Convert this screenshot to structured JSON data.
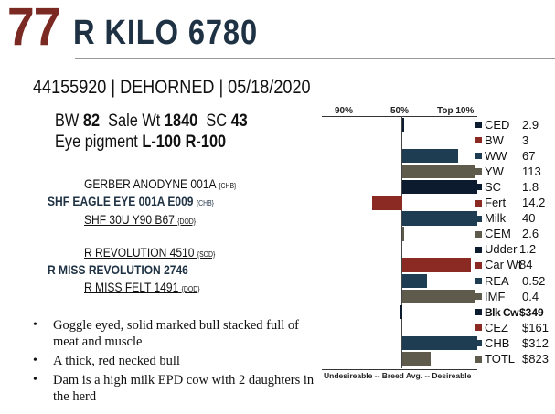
{
  "header": {
    "lot_number": "77",
    "animal_name": "R KILO 6780"
  },
  "id_line": "44155920 | DEHORNED | 05/18/2020",
  "stats": {
    "bw_label": "BW",
    "bw_value": "82",
    "salewt_label": "Sale Wt",
    "salewt_value": "1840",
    "sc_label": "SC",
    "sc_value": "43",
    "eye_label": "Eye pigment",
    "eye_left": "L-100",
    "eye_right": "R-100"
  },
  "pedigree": {
    "sire_sire": {
      "name": "GERBER ANODYNE 001A",
      "reg": "{CHB}"
    },
    "sire": {
      "name": "SHF EAGLE EYE 001A E009",
      "reg": "{CHB}"
    },
    "sire_dam": {
      "name": "SHF 30U Y90 B67",
      "reg": "{DOD}"
    },
    "dam_sire": {
      "name": "R REVOLUTION 4510",
      "reg": "{SOD}"
    },
    "dam": {
      "name": "R MISS REVOLUTION 2746",
      "reg": ""
    },
    "dam_dam": {
      "name": "R MISS FELT 1491",
      "reg": "{DOD}"
    }
  },
  "bullets": [
    "Goggle eyed, solid marked bull stacked full of meat and muscle",
    "A thick, red necked bull",
    "Dam is a high milk EPD cow with 2 daughters in the herd"
  ],
  "epd_chart": {
    "percentile_labels": [
      "90%",
      "50%",
      "Top 10%"
    ],
    "footer": "Undesireable -- Breed Avg. -- Desireable",
    "traits": [
      {
        "label": "CED",
        "value": "2.9",
        "color": "#0d1b2e",
        "bar": 0.03,
        "bold": false
      },
      {
        "label": "BW",
        "value": "3",
        "color": "#8a2a22",
        "bar": 0.0,
        "bold": false
      },
      {
        "label": "WW",
        "value": "67",
        "color": "#1f3d52",
        "bar": 0.74,
        "bold": false
      },
      {
        "label": "YW",
        "value": "113",
        "color": "#5e5a4c",
        "bar": 0.98,
        "bold": false
      },
      {
        "label": "SC",
        "value": "1.8",
        "color": "#0d1b2e",
        "bar": 1.0,
        "bold": false
      },
      {
        "label": "Fert",
        "value": "14.2",
        "color": "#8a2a22",
        "bar": -0.38,
        "bold": false
      },
      {
        "label": "Milk",
        "value": "40",
        "color": "#1f3d52",
        "bar": 1.0,
        "bold": false
      },
      {
        "label": "CEM",
        "value": "2.6",
        "color": "#5e5a4c",
        "bar": 0.03,
        "bold": false
      },
      {
        "label": "Udder",
        "value": "1.2",
        "color": "#0d1b2e",
        "bar": 0.0,
        "bold": false
      },
      {
        "label": "Car Wt",
        "value": "84",
        "color": "#8a2a22",
        "bar": 0.92,
        "bold": false
      },
      {
        "label": "REA",
        "value": "0.52",
        "color": "#1f3d52",
        "bar": 0.33,
        "bold": false
      },
      {
        "label": "IMF",
        "value": "0.4",
        "color": "#5e5a4c",
        "bar": 0.98,
        "bold": false
      },
      {
        "label": "Blk Cw",
        "value": "$349",
        "color": "#0d1b2e",
        "bar": -0.02,
        "bold": true
      },
      {
        "label": "CEZ",
        "value": "$161",
        "color": "#8a2a22",
        "bar": 0.0,
        "bold": false
      },
      {
        "label": "CHB",
        "value": "$312",
        "color": "#1f3d52",
        "bar": 1.0,
        "bold": false
      },
      {
        "label": "TOTL",
        "value": "$823",
        "color": "#5e5a4c",
        "bar": 0.38,
        "bold": false
      }
    ]
  }
}
